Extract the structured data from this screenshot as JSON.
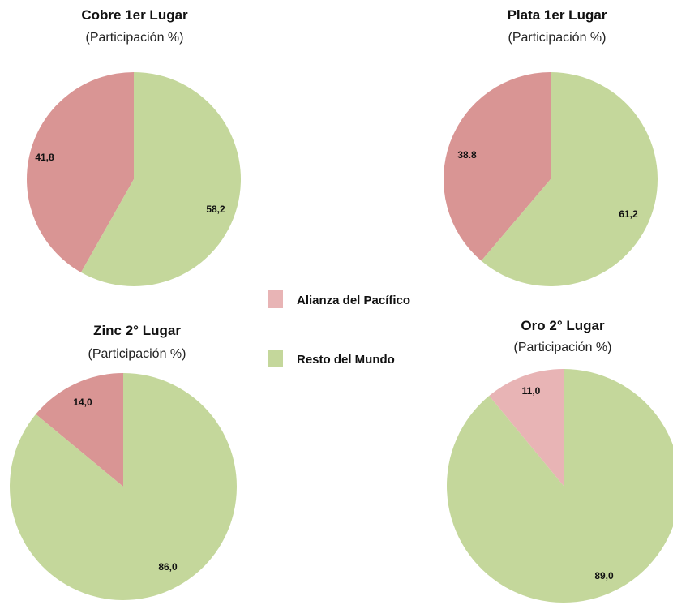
{
  "legend": [
    {
      "name": "Alianza del Pacífico",
      "color": "#e8b4b5"
    },
    {
      "name": "Resto del Mundo",
      "color": "#c4d79b"
    }
  ],
  "chart_data": [
    {
      "type": "pie",
      "title": "Cobre 1er Lugar",
      "subtitle": "(Participación %)",
      "slices": [
        {
          "name": "Alianza del Pacífico",
          "value": 41.8,
          "label": "41,8",
          "color": "#d99594"
        },
        {
          "name": "Resto del Mundo",
          "value": 58.2,
          "label": "58,2",
          "color": "#c4d79b"
        }
      ]
    },
    {
      "type": "pie",
      "title": "Plata 1er Lugar",
      "subtitle": "(Participación %)",
      "slices": [
        {
          "name": "Alianza del Pacífico",
          "value": 38.8,
          "label": "38.8",
          "color": "#d99594"
        },
        {
          "name": "Resto del Mundo",
          "value": 61.2,
          "label": "61,2",
          "color": "#c4d79b"
        }
      ]
    },
    {
      "type": "pie",
      "title": "Zinc 2° Lugar",
      "subtitle": "(Participación %)",
      "slices": [
        {
          "name": "Alianza del Pacífico",
          "value": 14.0,
          "label": "14,0",
          "color": "#d99594"
        },
        {
          "name": "Resto del Mundo",
          "value": 86.0,
          "label": "86,0",
          "color": "#c4d79b"
        }
      ]
    },
    {
      "type": "pie",
      "title": "Oro 2° Lugar",
      "subtitle": "(Participación %)",
      "slices": [
        {
          "name": "Alianza del Pacífico",
          "value": 11.0,
          "label": "11,0",
          "color": "#e8b4b5"
        },
        {
          "name": "Resto del Mundo",
          "value": 89.0,
          "label": "89,0",
          "color": "#c4d79b"
        }
      ]
    }
  ]
}
